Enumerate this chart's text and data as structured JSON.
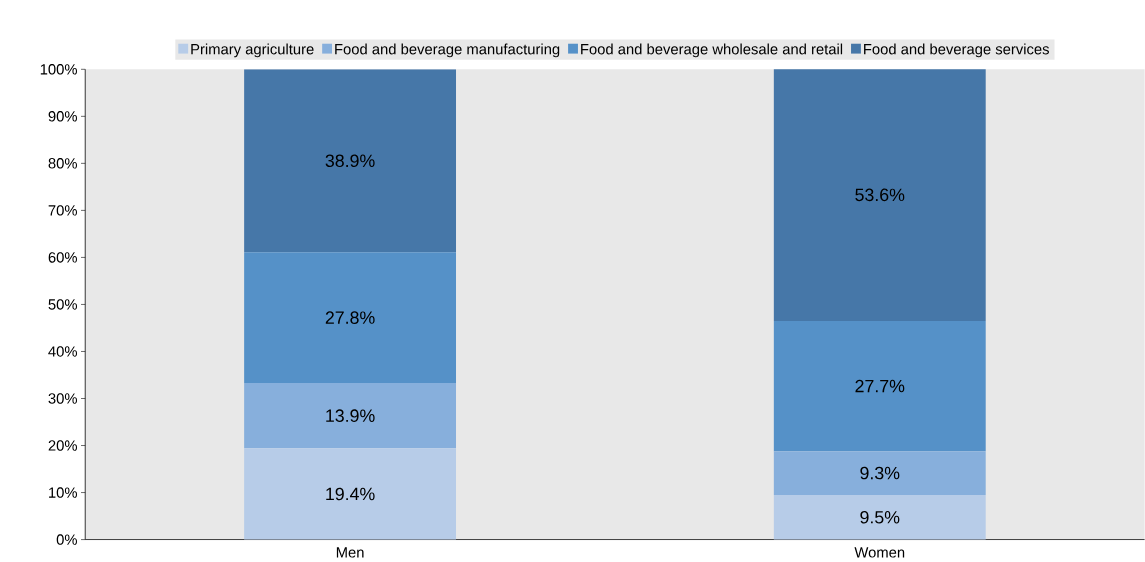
{
  "chart_data": {
    "type": "bar",
    "stacked": true,
    "categories": [
      "Men",
      "Women"
    ],
    "series": [
      {
        "name": "Primary agriculture",
        "color": "#b7cce8",
        "values": [
          19.4,
          9.5
        ],
        "value_labels": [
          "19.4%",
          "9.5%"
        ]
      },
      {
        "name": "Food and beverage manufacturing",
        "color": "#87afdc",
        "values": [
          13.9,
          9.3
        ],
        "value_labels": [
          "13.9%",
          "9.3%"
        ]
      },
      {
        "name": "Food and beverage wholesale and retail",
        "color": "#5591c8",
        "values": [
          27.8,
          27.7
        ],
        "value_labels": [
          "27.8%",
          "27.7%"
        ]
      },
      {
        "name": "Food and beverage services",
        "color": "#4677a8",
        "values": [
          38.9,
          53.6
        ],
        "value_labels": [
          "38.9%",
          "53.6%"
        ]
      }
    ],
    "ylim": [
      0,
      100
    ],
    "yticks": [
      {
        "value": 0,
        "label": "0%"
      },
      {
        "value": 10,
        "label": "10%"
      },
      {
        "value": 20,
        "label": "20%"
      },
      {
        "value": 30,
        "label": "30%"
      },
      {
        "value": 40,
        "label": "40%"
      },
      {
        "value": 50,
        "label": "50%"
      },
      {
        "value": 60,
        "label": "60%"
      },
      {
        "value": 70,
        "label": "70%"
      },
      {
        "value": 80,
        "label": "80%"
      },
      {
        "value": 90,
        "label": "90%"
      },
      {
        "value": 100,
        "label": "100%"
      }
    ],
    "legend": "top"
  }
}
